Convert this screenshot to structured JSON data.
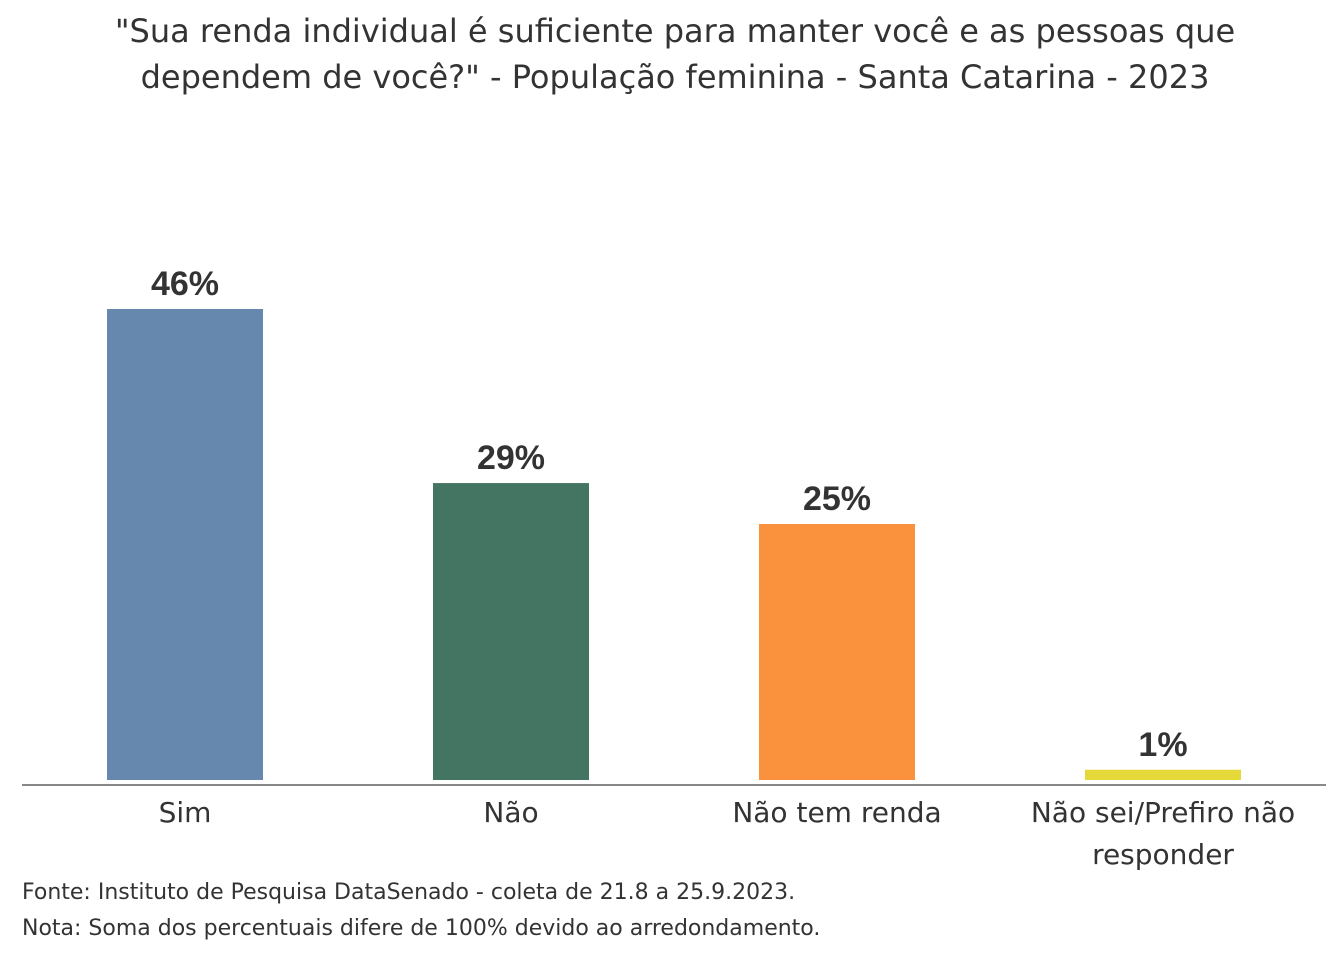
{
  "chart_data": {
    "type": "bar",
    "title": "\"Sua renda individual é suficiente para manter você e as pessoas que dependem de você?\" - População feminina - Santa Catarina - 2023",
    "categories": [
      {
        "label_lines": [
          "Sim"
        ],
        "value": 46,
        "value_label": "46%",
        "color": "#6688AF"
      },
      {
        "label_lines": [
          "Não"
        ],
        "value": 29,
        "value_label": "29%",
        "color": "#447563"
      },
      {
        "label_lines": [
          "Não tem renda"
        ],
        "value": 25,
        "value_label": "25%",
        "color": "#FA913D"
      },
      {
        "label_lines": [
          "Não sei/Prefiro não",
          "responder"
        ],
        "value": 1,
        "value_label": "1%",
        "color": "#E5D93A"
      }
    ],
    "ylim": [
      0,
      46
    ],
    "grid": false,
    "legend": "none"
  },
  "footer": {
    "source": "Fonte: Instituto de Pesquisa DataSenado - coleta de 21.8 a 25.9.2023.",
    "note": "Nota: Soma dos percentuais difere de 100% devido ao arredondamento."
  }
}
